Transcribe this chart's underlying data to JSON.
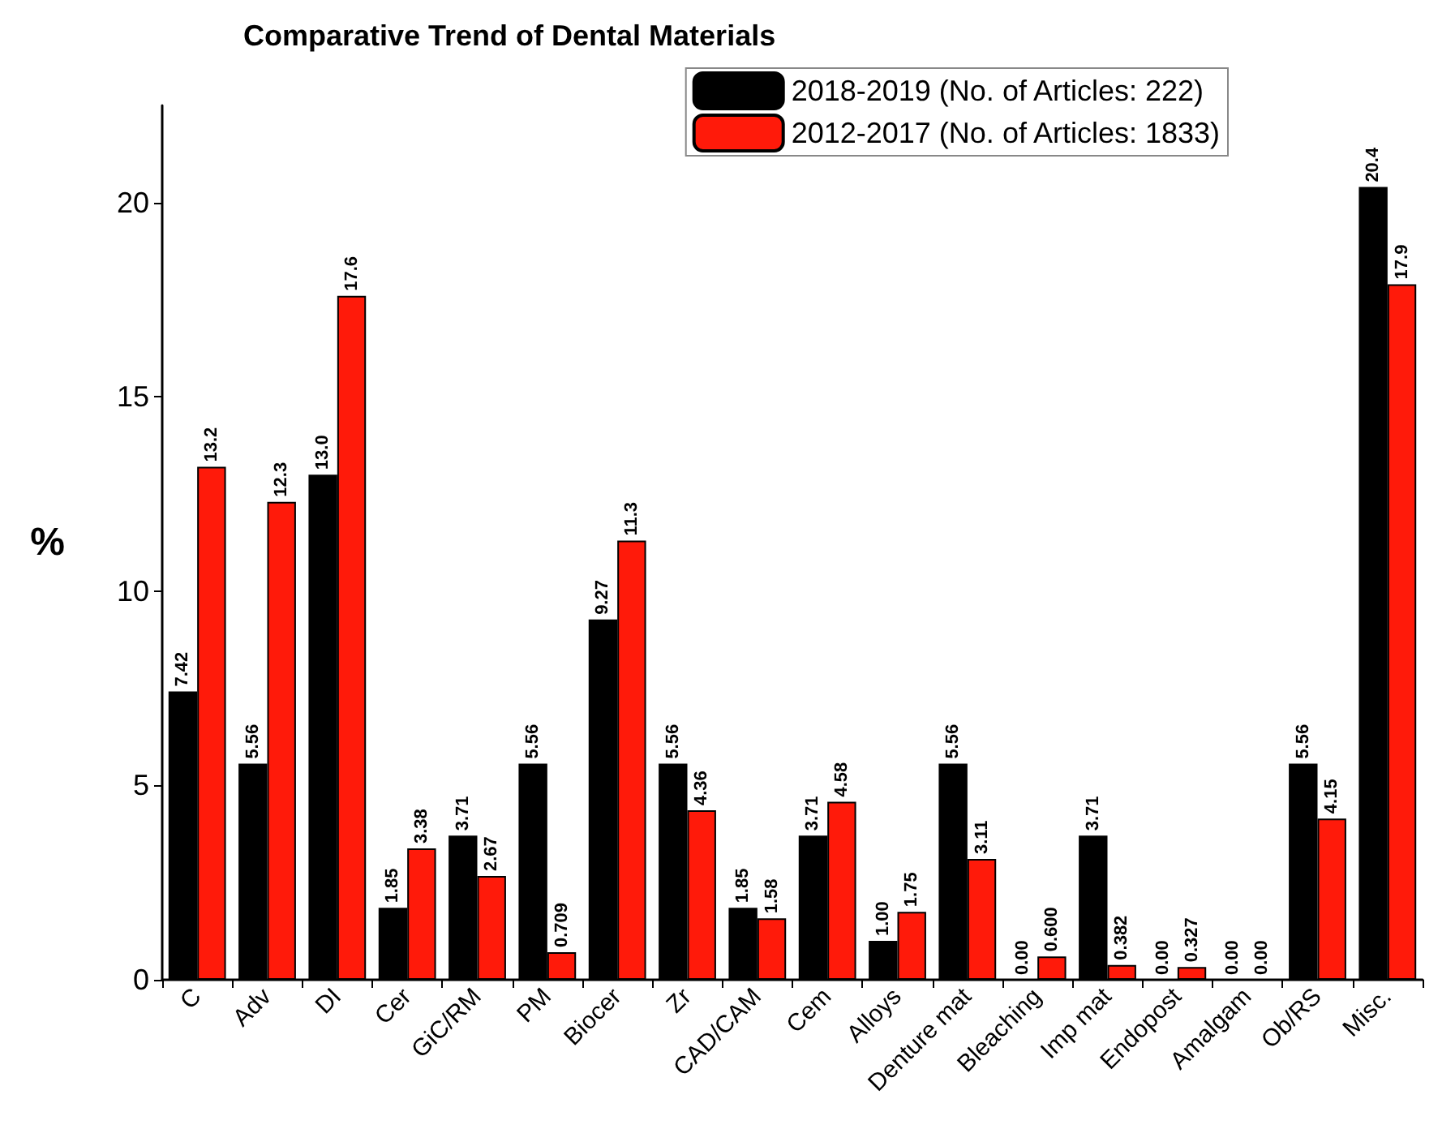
{
  "chart_data": {
    "type": "bar",
    "title": "Comparative Trend of Dental Materials",
    "ylabel": "%",
    "categories": [
      "C",
      "Adv",
      "DI",
      "Cer",
      "GiC/RM",
      "PM",
      "Biocer",
      "Zr",
      "CAD/CAM",
      "Cem",
      "Alloys",
      "Denture mat",
      "Bleaching",
      "Imp mat",
      "Endopost",
      "Amalgam",
      "Ob/RS",
      "Misc."
    ],
    "series": [
      {
        "name": "2018-2019 (No. of Articles: 222)",
        "color": "#000000",
        "values": [
          7.42,
          5.56,
          13.0,
          1.85,
          3.71,
          5.56,
          9.27,
          5.56,
          1.85,
          3.71,
          1.0,
          5.56,
          0.0,
          3.71,
          0.0,
          0.0,
          5.56,
          20.4
        ],
        "value_labels": [
          "7.42",
          "5.56",
          "13.0",
          "1.85",
          "3.71",
          "5.56",
          "9.27",
          "5.56",
          "1.85",
          "3.71",
          "1.00",
          "5.56",
          "0.00",
          "3.71",
          "0.00",
          "0.00",
          "5.56",
          "20.4"
        ]
      },
      {
        "name": "2012-2017 (No. of Articles: 1833)",
        "color": "#ff1a0a",
        "values": [
          13.2,
          12.3,
          17.6,
          3.38,
          2.67,
          0.709,
          11.3,
          4.36,
          1.58,
          4.58,
          1.75,
          3.11,
          0.6,
          0.382,
          0.327,
          0.0,
          4.15,
          17.9
        ],
        "value_labels": [
          "13.2",
          "12.3",
          "17.6",
          "3.38",
          "2.67",
          "0.709",
          "11.3",
          "4.36",
          "1.58",
          "4.58",
          "1.75",
          "3.11",
          "0.600",
          "0.382",
          "0.327",
          "0.00",
          "4.15",
          "17.9"
        ]
      }
    ],
    "ylim": [
      0,
      22.5
    ],
    "yticks": [
      0,
      5,
      10,
      15,
      20
    ],
    "grid": false,
    "legend": "top right"
  }
}
